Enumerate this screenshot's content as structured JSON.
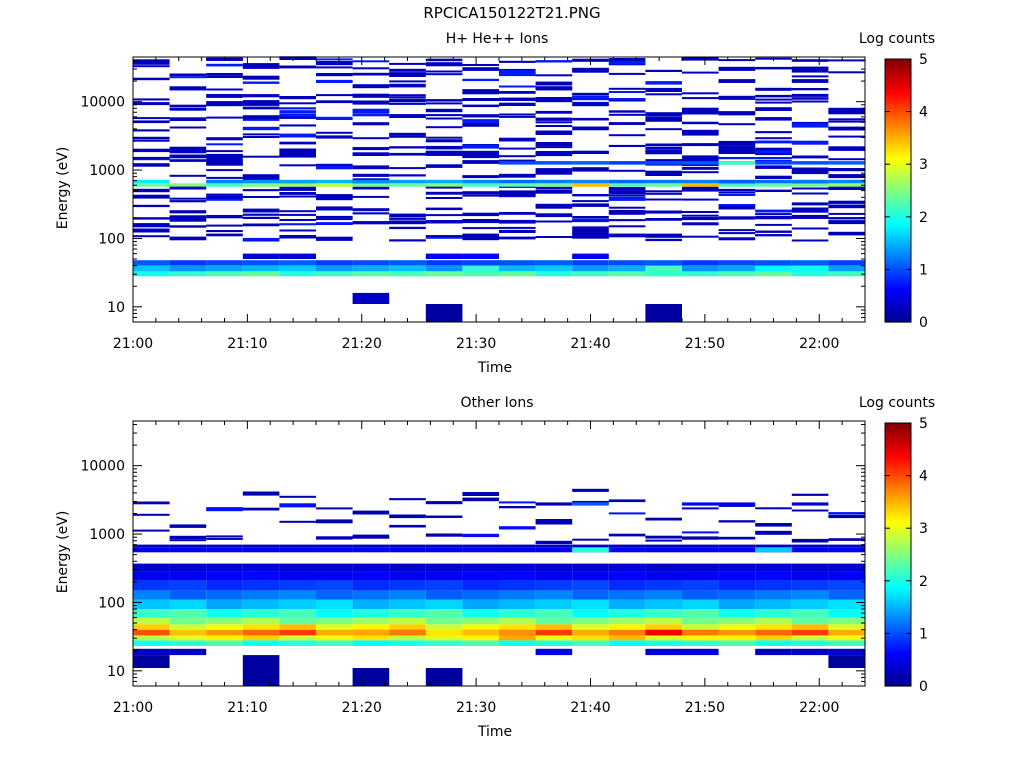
{
  "figure": {
    "title": "RPCICA150122T21.PNG"
  },
  "colormap": [
    "#00008f",
    "#0000ff",
    "#0080ff",
    "#00ffff",
    "#80ff80",
    "#ffff00",
    "#ff8000",
    "#ff0000",
    "#800000"
  ],
  "chart_data": [
    {
      "type": "heatmap",
      "title": "H+ He++ Ions",
      "xlabel": "Time",
      "ylabel": "Energy (eV)",
      "yscale": "log",
      "ylim": [
        6,
        45000
      ],
      "xlim_minutes": [
        0,
        64
      ],
      "x_tick_labels": [
        "21:00",
        "21:10",
        "21:20",
        "21:30",
        "21:40",
        "21:50",
        "22:00"
      ],
      "x_tick_minutes": [
        0,
        10,
        20,
        30,
        40,
        50,
        60
      ],
      "y_tick_labels": [
        "10",
        "100",
        "1000",
        "10000"
      ],
      "y_tick_values": [
        10,
        100,
        1000,
        10000
      ],
      "colorbar": {
        "label": "Log counts",
        "range": [
          0,
          5
        ],
        "tick_labels": [
          "0",
          "1",
          "2",
          "3",
          "4",
          "5"
        ]
      },
      "time_bins": 20,
      "bin_minutes": 3.2,
      "bands": [
        {
          "e": [
            40,
            48
          ],
          "cols": [
            [
              0,
              20,
              1.0
            ]
          ]
        },
        {
          "e": [
            33,
            40
          ],
          "cols": [
            [
              0,
              20,
              1.5
            ],
            [
              9,
              10,
              2.2
            ],
            [
              14,
              15,
              2.1
            ],
            [
              17,
              19,
              1.8
            ]
          ]
        },
        {
          "e": [
            28,
            33
          ],
          "cols": [
            [
              0,
              20,
              2.2
            ],
            [
              7,
              9,
              2.5
            ],
            [
              14,
              15,
              2.4
            ]
          ]
        },
        {
          "e": [
            50,
            60
          ],
          "cols": [
            [
              3,
              5,
              0.4
            ],
            [
              8,
              10,
              0.6
            ],
            [
              12,
              13,
              0.5
            ]
          ]
        },
        {
          "e": [
            570,
            640
          ],
          "cols": [
            [
              0,
              20,
              2.4
            ],
            [
              3,
              7,
              2.6
            ],
            [
              12,
              13,
              3.2
            ],
            [
              15,
              16,
              3.3
            ]
          ]
        },
        {
          "e": [
            640,
            720
          ],
          "cols": [
            [
              0,
              1,
              1.8
            ],
            [
              2,
              10,
              1.4
            ],
            [
              10,
              20,
              1.2
            ]
          ]
        },
        {
          "e": [
            520,
            570
          ],
          "cols": [
            [
              1,
              2,
              0.3
            ],
            [
              4,
              5,
              0.3
            ],
            [
              6,
              7,
              0.3
            ],
            [
              11,
              12,
              0.3
            ],
            [
              15,
              16,
              0.2
            ]
          ]
        },
        {
          "e": [
            1200,
            1350
          ],
          "cols": [
            [
              10,
              20,
              1.0
            ],
            [
              16,
              17,
              2.4
            ]
          ]
        },
        {
          "e": [
            1700,
            1900
          ],
          "cols": [
            [
              4,
              5,
              0.3
            ],
            [
              8,
              9,
              0.3
            ],
            [
              11,
              12,
              0.4
            ],
            [
              14,
              15,
              0.3
            ]
          ]
        },
        {
          "e": [
            950,
            1100
          ],
          "cols": [
            [
              12,
              13,
              0.2
            ]
          ]
        },
        {
          "e": [
            11,
            16
          ],
          "cols": [
            [
              6,
              7,
              0.3
            ]
          ]
        },
        {
          "e": [
            6,
            11
          ],
          "cols": [
            [
              8,
              9,
              0.1
            ],
            [
              14,
              15,
              0.1
            ]
          ]
        }
      ],
      "sparse": {
        "seed": 7,
        "emin": 90,
        "emax": 42000,
        "lines_per_col": 28,
        "value": 0.25
      }
    },
    {
      "type": "heatmap",
      "title": "Other Ions",
      "xlabel": "Time",
      "ylabel": "Energy (eV)",
      "yscale": "log",
      "ylim": [
        6,
        45000
      ],
      "xlim_minutes": [
        0,
        64
      ],
      "x_tick_labels": [
        "21:00",
        "21:10",
        "21:20",
        "21:30",
        "21:40",
        "21:50",
        "22:00"
      ],
      "x_tick_minutes": [
        0,
        10,
        20,
        30,
        40,
        50,
        60
      ],
      "y_tick_labels": [
        "10",
        "100",
        "1000",
        "10000"
      ],
      "y_tick_values": [
        10,
        100,
        1000,
        10000
      ],
      "colorbar": {
        "label": "Log counts",
        "range": [
          0,
          5
        ],
        "tick_labels": [
          "0",
          "1",
          "2",
          "3",
          "4",
          "5"
        ]
      },
      "time_bins": 20,
      "bin_minutes": 3.2,
      "bands": [
        {
          "e": [
            23,
            28
          ],
          "cols": [
            [
              0,
              20,
              2.1
            ]
          ]
        },
        {
          "e": [
            28,
            33
          ],
          "cols": [
            [
              0,
              20,
              3.1
            ],
            [
              10,
              16,
              3.3
            ]
          ]
        },
        {
          "e": [
            33,
            40
          ],
          "cols": [
            [
              0,
              20,
              3.8
            ],
            [
              6,
              11,
              3.6
            ],
            [
              14,
              16,
              4.2
            ]
          ]
        },
        {
          "e": [
            40,
            48
          ],
          "cols": [
            [
              0,
              20,
              3.2
            ]
          ]
        },
        {
          "e": [
            48,
            60
          ],
          "cols": [
            [
              0,
              20,
              2.6
            ]
          ]
        },
        {
          "e": [
            60,
            80
          ],
          "cols": [
            [
              0,
              20,
              2.1
            ]
          ]
        },
        {
          "e": [
            80,
            110
          ],
          "cols": [
            [
              0,
              20,
              1.6
            ]
          ]
        },
        {
          "e": [
            110,
            150
          ],
          "cols": [
            [
              0,
              20,
              1.2
            ]
          ]
        },
        {
          "e": [
            150,
            210
          ],
          "cols": [
            [
              0,
              20,
              0.9
            ]
          ]
        },
        {
          "e": [
            210,
            280
          ],
          "cols": [
            [
              0,
              20,
              0.6
            ]
          ]
        },
        {
          "e": [
            280,
            370
          ],
          "cols": [
            [
              0,
              20,
              0.4
            ]
          ]
        },
        {
          "e": [
            540,
            640
          ],
          "cols": [
            [
              0,
              20,
              0.6
            ],
            [
              12,
              13,
              2.0
            ],
            [
              17,
              18,
              1.8
            ]
          ]
        },
        {
          "e": [
            640,
            700
          ],
          "cols": [
            [
              0,
              20,
              0.3
            ]
          ]
        },
        {
          "e": [
            2600,
            2900
          ],
          "cols": [
            [
              11,
              12,
              0.2
            ],
            [
              12,
              13,
              1.0
            ],
            [
              15,
              17,
              0.6
            ],
            [
              18,
              19,
              0.4
            ]
          ]
        },
        {
          "e": [
            17,
            21
          ],
          "cols": [
            [
              0,
              2,
              0.3
            ],
            [
              11,
              12,
              0.5
            ],
            [
              14,
              16,
              0.4
            ],
            [
              17,
              20,
              0.3
            ]
          ]
        },
        {
          "e": [
            11,
            17
          ],
          "cols": [
            [
              0,
              1,
              0.1
            ],
            [
              3,
              4,
              0.1
            ],
            [
              19,
              20,
              0.1
            ]
          ]
        },
        {
          "e": [
            6,
            11
          ],
          "cols": [
            [
              3,
              4,
              0.1
            ],
            [
              6,
              7,
              0.1
            ],
            [
              8,
              9,
              0.1
            ]
          ]
        }
      ],
      "sparse": {
        "seed": 13,
        "emin": 700,
        "emax": 4500,
        "lines_per_col": 3,
        "value": 0.2
      }
    }
  ]
}
